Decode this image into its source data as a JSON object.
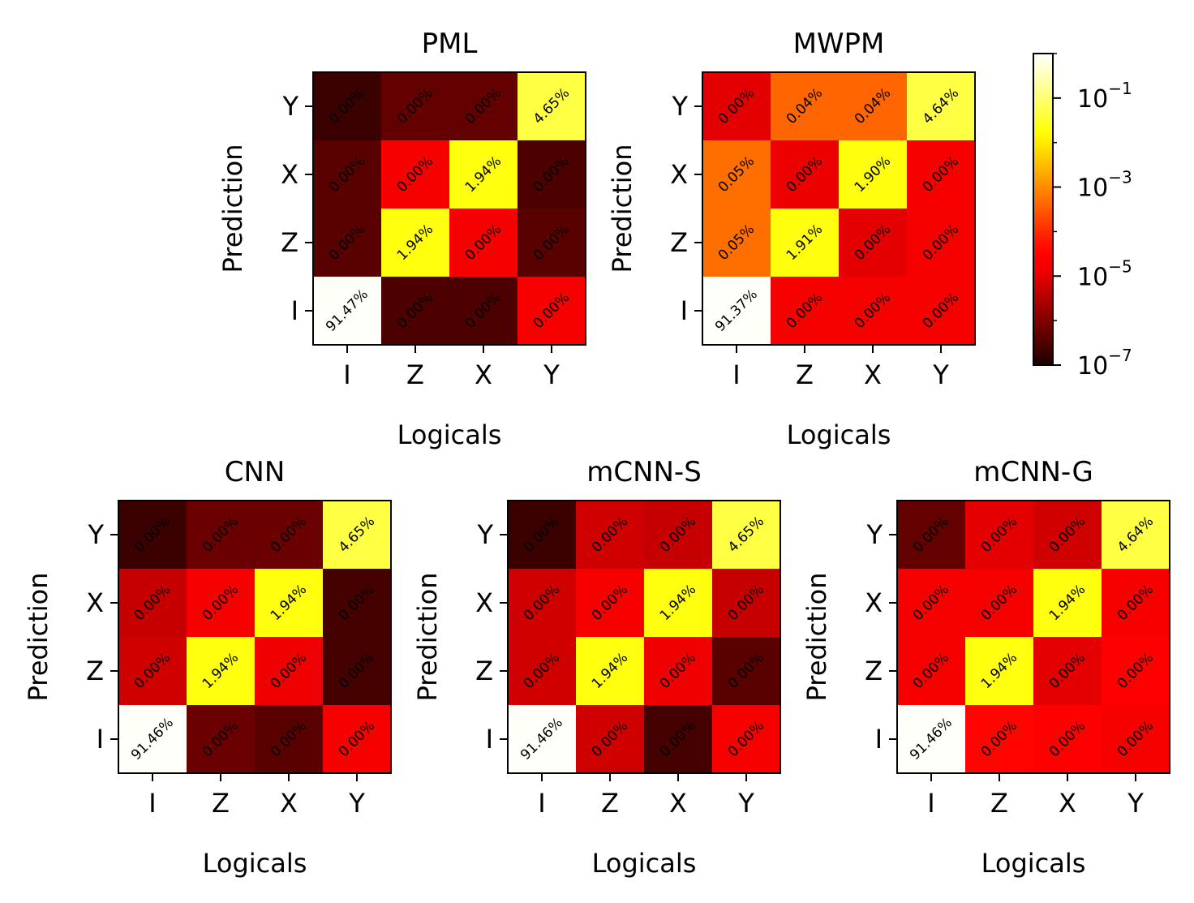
{
  "colorbar": {
    "scale": "log",
    "min": 1e-07,
    "max": 1,
    "ticks": [
      {
        "base": "10",
        "exp": "−1",
        "value": 0.1
      },
      {
        "base": "10",
        "exp": "−3",
        "value": 0.001
      },
      {
        "base": "10",
        "exp": "−5",
        "value": 1e-05
      },
      {
        "base": "10",
        "exp": "−7",
        "value": 1e-07
      }
    ],
    "colormap": "hot"
  },
  "chart_data": [
    {
      "type": "heatmap",
      "title": "PML",
      "xlabel": "Logicals",
      "ylabel": "Prediction",
      "x_categories": [
        "I",
        "Z",
        "X",
        "Y"
      ],
      "y_categories": [
        "I",
        "Z",
        "X",
        "Y"
      ],
      "values": [
        [
          0.9147,
          3e-07,
          3e-07,
          1.5e-05
        ],
        [
          4e-07,
          0.0194,
          1.5e-05,
          4e-07
        ],
        [
          4e-07,
          1.5e-05,
          0.0194,
          3e-07
        ],
        [
          2e-07,
          5e-07,
          5e-07,
          0.0465
        ]
      ],
      "labels": [
        [
          "91.47%",
          "0.00%",
          "0.00%",
          "0.00%"
        ],
        [
          "0.00%",
          "1.94%",
          "0.00%",
          "0.00%"
        ],
        [
          "0.00%",
          "0.00%",
          "1.94%",
          "0.00%"
        ],
        [
          "0.00%",
          "0.00%",
          "0.00%",
          "4.65%"
        ]
      ]
    },
    {
      "type": "heatmap",
      "title": "MWPM",
      "xlabel": "Logicals",
      "ylabel": "Prediction",
      "x_categories": [
        "I",
        "Z",
        "X",
        "Y"
      ],
      "y_categories": [
        "I",
        "Z",
        "X",
        "Y"
      ],
      "values": [
        [
          0.9137,
          1.5e-05,
          1.5e-05,
          1.5e-05
        ],
        [
          0.0005,
          0.0191,
          1e-05,
          1.5e-05
        ],
        [
          0.0005,
          1.2e-05,
          0.019,
          1.5e-05
        ],
        [
          1e-05,
          0.0004,
          0.0004,
          0.0464
        ]
      ],
      "labels": [
        [
          "91.37%",
          "0.00%",
          "0.00%",
          "0.00%"
        ],
        [
          "0.05%",
          "1.91%",
          "0.00%",
          "0.00%"
        ],
        [
          "0.05%",
          "0.00%",
          "1.90%",
          "0.00%"
        ],
        [
          "0.00%",
          "0.04%",
          "0.04%",
          "4.64%"
        ]
      ]
    },
    {
      "type": "heatmap",
      "title": "CNN",
      "xlabel": "Logicals",
      "ylabel": "Prediction",
      "x_categories": [
        "I",
        "Z",
        "X",
        "Y"
      ],
      "y_categories": [
        "I",
        "Z",
        "X",
        "Y"
      ],
      "values": [
        [
          0.9146,
          6e-07,
          4e-07,
          1.5e-05
        ],
        [
          6e-06,
          0.0194,
          1.3e-05,
          2.5e-07
        ],
        [
          5e-06,
          1.5e-05,
          0.0194,
          2.5e-07
        ],
        [
          2e-07,
          6e-07,
          6e-07,
          0.0465
        ]
      ],
      "labels": [
        [
          "91.46%",
          "0.00%",
          "0.00%",
          "0.00%"
        ],
        [
          "0.00%",
          "1.94%",
          "0.00%",
          "0.00%"
        ],
        [
          "0.00%",
          "0.00%",
          "1.94%",
          "0.00%"
        ],
        [
          "0.00%",
          "0.00%",
          "0.00%",
          "4.65%"
        ]
      ]
    },
    {
      "type": "heatmap",
      "title": "mCNN-S",
      "xlabel": "Logicals",
      "ylabel": "Prediction",
      "x_categories": [
        "I",
        "Z",
        "X",
        "Y"
      ],
      "y_categories": [
        "I",
        "Z",
        "X",
        "Y"
      ],
      "values": [
        [
          0.9146,
          6e-06,
          2.5e-07,
          1.5e-05
        ],
        [
          6e-06,
          0.0194,
          1.3e-05,
          4e-07
        ],
        [
          6e-06,
          1.5e-05,
          0.0194,
          5e-06
        ],
        [
          2e-07,
          6e-06,
          5e-06,
          0.0465
        ]
      ],
      "labels": [
        [
          "91.46%",
          "0.00%",
          "0.00%",
          "0.00%"
        ],
        [
          "0.00%",
          "1.94%",
          "0.00%",
          "0.00%"
        ],
        [
          "0.00%",
          "0.00%",
          "1.94%",
          "0.00%"
        ],
        [
          "0.00%",
          "0.00%",
          "0.00%",
          "4.65%"
        ]
      ]
    },
    {
      "type": "heatmap",
      "title": "mCNN-G",
      "xlabel": "Logicals",
      "ylabel": "Prediction",
      "x_categories": [
        "I",
        "Z",
        "X",
        "Y"
      ],
      "y_categories": [
        "I",
        "Z",
        "X",
        "Y"
      ],
      "values": [
        [
          0.9146,
          4e-05,
          3e-05,
          1.5e-05
        ],
        [
          1.5e-05,
          0.0194,
          1e-05,
          3e-05
        ],
        [
          1.5e-05,
          1.5e-05,
          0.0194,
          1.5e-05
        ],
        [
          5e-07,
          1e-05,
          6e-06,
          0.0464
        ]
      ],
      "labels": [
        [
          "91.46%",
          "0.00%",
          "0.00%",
          "0.00%"
        ],
        [
          "0.00%",
          "1.94%",
          "0.00%",
          "0.00%"
        ],
        [
          "0.00%",
          "0.00%",
          "1.94%",
          "0.00%"
        ],
        [
          "0.00%",
          "0.00%",
          "0.00%",
          "4.64%"
        ]
      ]
    }
  ]
}
